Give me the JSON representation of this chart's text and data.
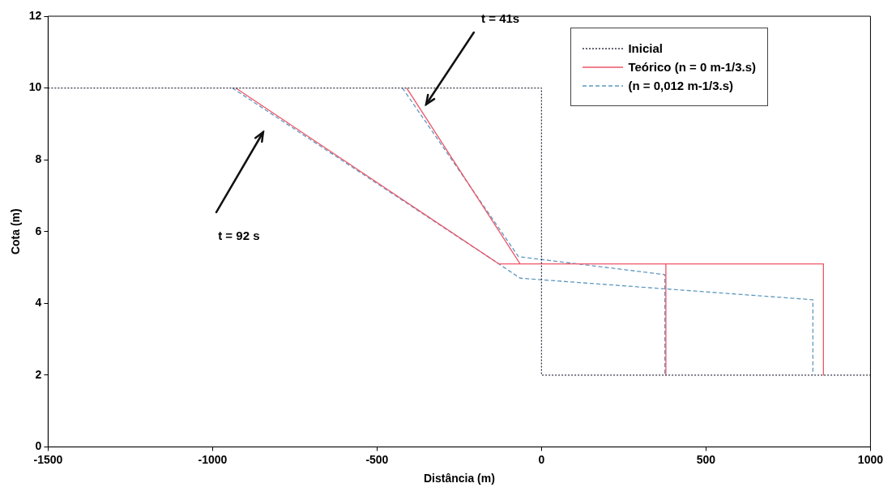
{
  "chart_data": {
    "type": "line",
    "xlabel": "Distância (m)",
    "ylabel": "Cota (m)",
    "xlim": [
      -1500,
      1000
    ],
    "xticks": [
      -1500,
      -1000,
      -500,
      0,
      500,
      1000
    ],
    "ylim": [
      0,
      12
    ],
    "yticks": [
      0,
      2,
      4,
      6,
      8,
      10,
      12
    ],
    "grid": false,
    "legend": "top right",
    "marker": "none",
    "series": [
      {
        "name": "Inicial",
        "color": "#333344",
        "line_style": "dotted",
        "x": [
          -1500,
          0,
          0,
          1000
        ],
        "values": [
          10,
          10,
          2,
          2
        ]
      },
      {
        "name": "Teórico  (n = 0 m-1/3.s)",
        "color": "#ee5566",
        "line_style": "solid",
        "x": [
          -410,
          -65,
          378,
          378,
          0,
          -930,
          -130,
          857,
          857
        ],
        "values": [
          10,
          5.1,
          5.1,
          2,
          null,
          10,
          5.1,
          5.1,
          2
        ]
      },
      {
        "name": "(n = 0,012 m-1/3.s)",
        "color": "#5f98bf",
        "line_style": "dashed",
        "x": [
          -423,
          -70,
          375,
          375,
          0,
          -940,
          -130,
          -65,
          825,
          825
        ],
        "values": [
          10,
          5.3,
          4.8,
          2,
          null,
          10,
          5.1,
          4.7,
          4.1,
          2
        ]
      }
    ],
    "annotations": [
      "t = 41s",
      "t = 92 s"
    ]
  }
}
